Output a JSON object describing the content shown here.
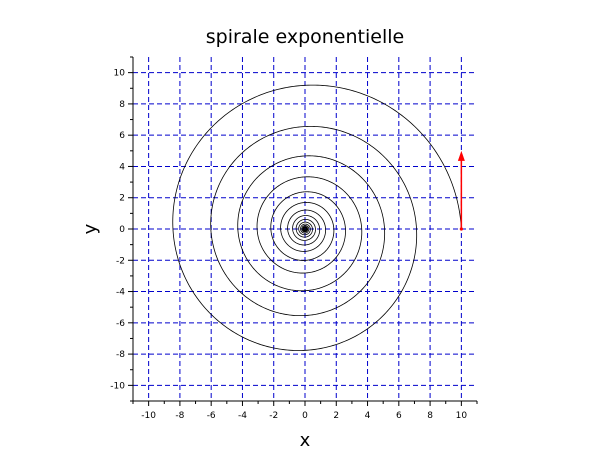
{
  "chart_data": {
    "type": "line",
    "title": "spirale exponentielle",
    "xlabel": "x",
    "ylabel": "y",
    "xlim": [
      -11,
      11
    ],
    "ylim": [
      -11,
      11
    ],
    "xticks": [
      -10,
      -8,
      -6,
      -4,
      -2,
      0,
      2,
      4,
      6,
      8,
      10
    ],
    "yticks": [
      -10,
      -8,
      -6,
      -4,
      -2,
      0,
      2,
      4,
      6,
      8,
      10
    ],
    "grid": true,
    "grid_color": "#0000cc",
    "series": [
      {
        "color": "#000000",
        "curve": "r = 10 * exp(-0.0538 * t), t from 0 to 100",
        "start_point": [
          10,
          0
        ],
        "end_point": [
          0,
          0
        ]
      }
    ],
    "annotations": [
      {
        "type": "arrow",
        "color": "#ff0000",
        "from": [
          10,
          0
        ],
        "to": [
          10,
          5
        ]
      }
    ]
  }
}
